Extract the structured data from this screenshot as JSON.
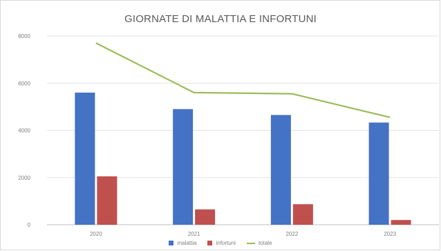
{
  "chart_data": {
    "type": "bar",
    "title": "GIORNATE DI MALATTIA E INFORTUNI",
    "categories": [
      "2020",
      "2021",
      "2022",
      "2023"
    ],
    "series": [
      {
        "name": "malattia",
        "type": "bar",
        "color": "#4472c4",
        "values": [
          5600,
          4900,
          4650,
          4330
        ]
      },
      {
        "name": "infortuni",
        "type": "bar",
        "color": "#c0504d",
        "values": [
          2050,
          650,
          870,
          200
        ]
      },
      {
        "name": "totale",
        "type": "line",
        "color": "#9bbb59",
        "values": [
          7700,
          5600,
          5550,
          4550
        ]
      }
    ],
    "yticks": [
      "0",
      "2000",
      "4000",
      "6000",
      "8000"
    ],
    "ylim": [
      0,
      8000
    ],
    "grid": true,
    "legend_position": "bottom"
  }
}
